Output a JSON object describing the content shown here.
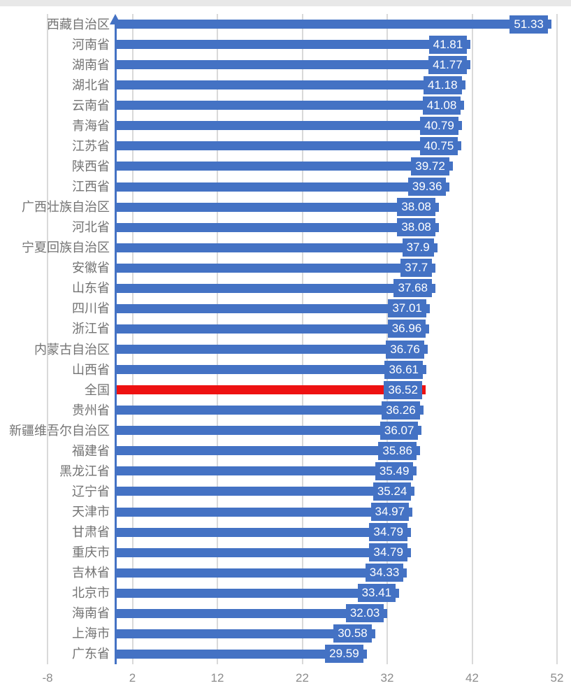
{
  "page": {
    "background": "#ffffff",
    "top_edge_color": "#e8e8e8"
  },
  "chart_data": {
    "type": "bar",
    "orientation": "horizontal",
    "title": "",
    "xlabel": "",
    "ylabel": "",
    "grid": true,
    "legend_position": "none",
    "x_range": [
      -8,
      52
    ],
    "x_ticks": [
      "-8",
      "2",
      "12",
      "22",
      "32",
      "42",
      "52"
    ],
    "x_tick_values": [
      -8,
      2,
      12,
      22,
      32,
      42,
      52
    ],
    "bar_color": "#4472C4",
    "highlight_color": "#EE1111",
    "label_box_color": "#4472C4",
    "label_text_color": "#ffffff",
    "axis_line_color": "#4472C4",
    "gridline_color": "#d9d9d9",
    "tick_label_color": "#8c8c8c",
    "category_label_color": "#737373",
    "highlight_category": "全国",
    "points": [
      {
        "name": "西藏自治区",
        "value": 51.33,
        "label": "51.33",
        "highlighted": false
      },
      {
        "name": "河南省",
        "value": 41.81,
        "label": "41.81",
        "highlighted": false
      },
      {
        "name": "湖南省",
        "value": 41.77,
        "label": "41.77",
        "highlighted": false
      },
      {
        "name": "湖北省",
        "value": 41.18,
        "label": "41.18",
        "highlighted": false
      },
      {
        "name": "云南省",
        "value": 41.08,
        "label": "41.08",
        "highlighted": false
      },
      {
        "name": "青海省",
        "value": 40.79,
        "label": "40.79",
        "highlighted": false
      },
      {
        "name": "江苏省",
        "value": 40.75,
        "label": "40.75",
        "highlighted": false
      },
      {
        "name": "陕西省",
        "value": 39.72,
        "label": "39.72",
        "highlighted": false
      },
      {
        "name": "江西省",
        "value": 39.36,
        "label": "39.36",
        "highlighted": false
      },
      {
        "name": "广西壮族自治区",
        "value": 38.08,
        "label": "38.08",
        "highlighted": false
      },
      {
        "name": "河北省",
        "value": 38.08,
        "label": "38.08",
        "highlighted": false
      },
      {
        "name": "宁夏回族自治区",
        "value": 37.9,
        "label": "37.9",
        "highlighted": false
      },
      {
        "name": "安徽省",
        "value": 37.7,
        "label": "37.7",
        "highlighted": false
      },
      {
        "name": "山东省",
        "value": 37.68,
        "label": "37.68",
        "highlighted": false
      },
      {
        "name": "四川省",
        "value": 37.01,
        "label": "37.01",
        "highlighted": false
      },
      {
        "name": "浙江省",
        "value": 36.96,
        "label": "36.96",
        "highlighted": false
      },
      {
        "name": "内蒙古自治区",
        "value": 36.76,
        "label": "36.76",
        "highlighted": false
      },
      {
        "name": "山西省",
        "value": 36.61,
        "label": "36.61",
        "highlighted": false
      },
      {
        "name": "全国",
        "value": 36.52,
        "label": "36.52",
        "highlighted": true
      },
      {
        "name": "贵州省",
        "value": 36.26,
        "label": "36.26",
        "highlighted": false
      },
      {
        "name": "新疆维吾尔自治区",
        "value": 36.07,
        "label": "36.07",
        "highlighted": false
      },
      {
        "name": "福建省",
        "value": 35.86,
        "label": "35.86",
        "highlighted": false
      },
      {
        "name": "黑龙江省",
        "value": 35.49,
        "label": "35.49",
        "highlighted": false
      },
      {
        "name": "辽宁省",
        "value": 35.24,
        "label": "35.24",
        "highlighted": false
      },
      {
        "name": "天津市",
        "value": 34.97,
        "label": "34.97",
        "highlighted": false
      },
      {
        "name": "甘肃省",
        "value": 34.79,
        "label": "34.79",
        "highlighted": false
      },
      {
        "name": "重庆市",
        "value": 34.79,
        "label": "34.79",
        "highlighted": false
      },
      {
        "name": "吉林省",
        "value": 34.33,
        "label": "34.33",
        "highlighted": false
      },
      {
        "name": "北京市",
        "value": 33.41,
        "label": "33.41",
        "highlighted": false
      },
      {
        "name": "海南省",
        "value": 32.03,
        "label": "32.03",
        "highlighted": false
      },
      {
        "name": "上海市",
        "value": 30.58,
        "label": "30.58",
        "highlighted": false
      },
      {
        "name": "广东省",
        "value": 29.59,
        "label": "29.59",
        "highlighted": false
      }
    ]
  }
}
